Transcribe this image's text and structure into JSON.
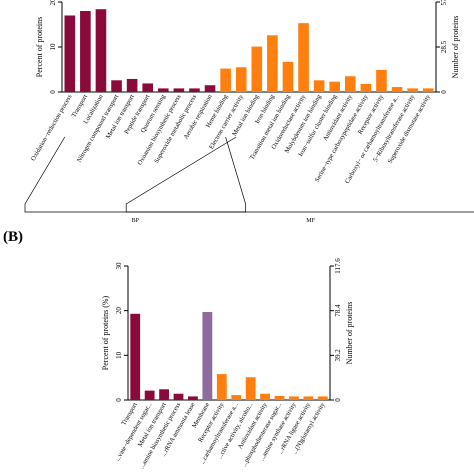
{
  "colors": {
    "bp": "#8b0a3c",
    "cc": "#8e6a9e",
    "mf": "#ff7f0e"
  },
  "chart_data": [
    {
      "panel": "",
      "type": "bar",
      "ylabel_left": "Percent of proteins",
      "ylabel_right": "Number of proteins",
      "ylim": [
        0,
        20
      ],
      "yticks_left": [
        "0",
        "10",
        "20"
      ],
      "yticks_right": [
        "0",
        "28.5",
        "57"
      ],
      "groups": [
        {
          "label": "BP",
          "color_key": "bp",
          "start": 0,
          "end": 10
        },
        {
          "label": "MF",
          "color_key": "mf",
          "start": 11,
          "end": 26
        }
      ],
      "categories": [
        "Oxidation−reduction process",
        "Transport",
        "Localization",
        "Nitrogen compound transport",
        "Metal ion transport",
        "Peptide transport",
        "Quorum sensing",
        "Oxoanion biosynthetic process",
        "Superoxide metabolic process",
        "Aerobic respiration",
        "Heme binding",
        "Electron carrier activity",
        "Metal ion binding",
        "Iron binding",
        "Transition metal ion binding",
        "Oxidoreductase activity",
        "Molybdenum ion binding",
        "Iron−sulfur cluster binding",
        "Antioxidant activity",
        "Serine−type carboxypeptidase activity",
        "Receptor activity",
        "Carboxyl− or carbamoyltransferase a...",
        "5−Ribosyltransferase activity",
        "Superoxide dismutase activity"
      ],
      "values": [
        17.0,
        18.0,
        18.4,
        2.6,
        2.9,
        1.9,
        0.8,
        0.8,
        0.8,
        1.5,
        5.2,
        5.5,
        10.1,
        12.6,
        6.7,
        15.3,
        2.6,
        2.3,
        3.5,
        1.8,
        4.9,
        1.1,
        0.8,
        0.8
      ],
      "series_color_keys": [
        "bp",
        "bp",
        "bp",
        "bp",
        "bp",
        "bp",
        "bp",
        "bp",
        "bp",
        "bp",
        "mf",
        "mf",
        "mf",
        "mf",
        "mf",
        "mf",
        "mf",
        "mf",
        "mf",
        "mf",
        "mf",
        "mf",
        "mf",
        "mf"
      ]
    },
    {
      "panel": "(B)",
      "type": "bar",
      "ylabel_left": "Percent of proteins (%)",
      "ylabel_right": "Number of proteins",
      "ylim": [
        0,
        30
      ],
      "yticks_left": [
        "0",
        "10",
        "20",
        "30"
      ],
      "yticks_right": [
        "0",
        "39.2",
        "78.4",
        "117.6"
      ],
      "categories": [
        "Transport",
        "...vate−dependent sugar...",
        "Metal ion transport",
        "...amine biosynthetic process",
        "...rRNA ammonia lease",
        "Membrane",
        "Receptor activity",
        "...carbamoyltransferase a...",
        "...ctive activity, alcoho...",
        "Antioxidant activity",
        "...phosphodiesterase sugar...",
        "...amine synthase activity",
        "...rRNA ligase activity",
        "...(N)glutamyl activity"
      ],
      "values": [
        19.3,
        2.1,
        2.4,
        1.4,
        0.8,
        19.7,
        5.8,
        1.1,
        5.1,
        1.4,
        0.9,
        0.8,
        0.8,
        0.8
      ],
      "series_color_keys": [
        "bp",
        "bp",
        "bp",
        "bp",
        "bp",
        "cc",
        "mf",
        "mf",
        "mf",
        "mf",
        "mf",
        "mf",
        "mf",
        "mf"
      ]
    }
  ]
}
